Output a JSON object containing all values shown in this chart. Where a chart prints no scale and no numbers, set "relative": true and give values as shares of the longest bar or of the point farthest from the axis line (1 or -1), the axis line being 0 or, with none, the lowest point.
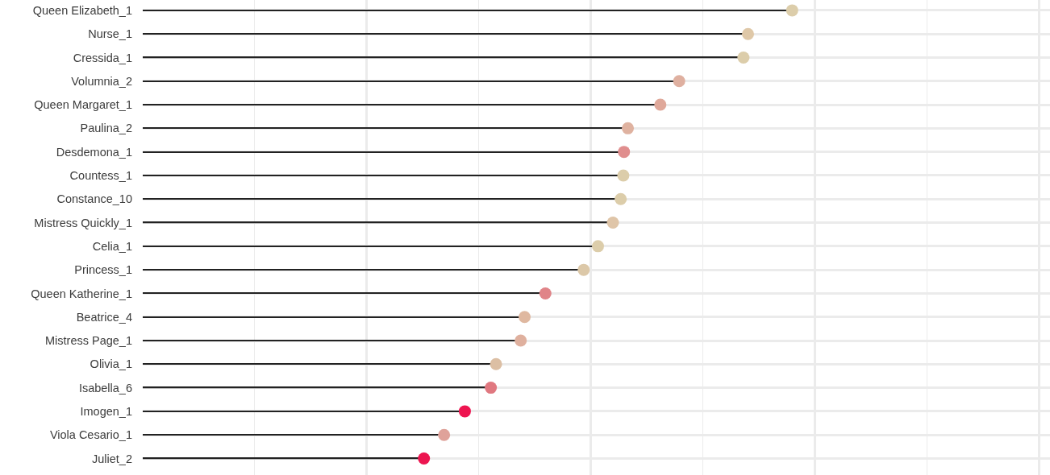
{
  "chart_data": {
    "type": "lollipop",
    "orientation": "horizontal",
    "relative": true,
    "grid": true,
    "marker": "circle",
    "categories": [
      "Queen Elizabeth_1",
      "Nurse_1",
      "Cressida_1",
      "Volumnia_2",
      "Queen Margaret_1",
      "Paulina_2",
      "Desdemona_1",
      "Countess_1",
      "Constance_10",
      "Mistress Quickly_1",
      "Celia_1",
      "Princess_1",
      "Queen Katherine_1",
      "Beatrice_4",
      "Mistress Page_1",
      "Olivia_1",
      "Isabella_6",
      "Imogen_1",
      "Viola Cesario_1",
      "Juliet_2"
    ],
    "values": [
      1.0,
      0.932,
      0.925,
      0.826,
      0.797,
      0.747,
      0.741,
      0.74,
      0.736,
      0.724,
      0.701,
      0.679,
      0.62,
      0.588,
      0.582,
      0.544,
      0.536,
      0.496,
      0.464,
      0.433
    ],
    "colors": [
      "#dccdaa",
      "#dfc8a8",
      "#dccdaa",
      "#dfb0a0",
      "#dfa89a",
      "#dfb2a0",
      "#e08e8e",
      "#dccdaa",
      "#dccdaa",
      "#dfc5a8",
      "#dccdaa",
      "#dcc8a8",
      "#e08488",
      "#dfb8a0",
      "#dfb09e",
      "#dcbfa4",
      "#e07880",
      "#ee1450",
      "#dfa29a",
      "#ec1550"
    ]
  }
}
